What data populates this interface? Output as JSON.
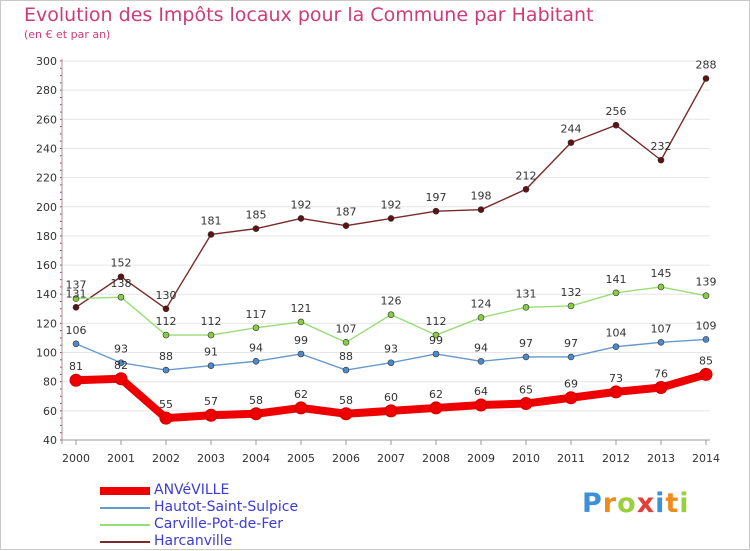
{
  "colors": {
    "title": "#cf3b78",
    "axis_text": "#333333",
    "grid": "#e6e6e6",
    "legend_text": "#3b3bd8",
    "tick": "#cc3366"
  },
  "chart_data": {
    "type": "line",
    "title": "Evolution des Impôts locaux pour la Commune par Habitant",
    "subtitle": "(en € et par an)",
    "xlabel": "",
    "ylabel": "",
    "ylim": [
      40,
      300
    ],
    "ytick_step": 20,
    "grid": true,
    "x": [
      "2000",
      "2001",
      "2002",
      "2003",
      "2004",
      "2005",
      "2006",
      "2007",
      "2008",
      "2009",
      "2010",
      "2011",
      "2012",
      "2013",
      "2014"
    ],
    "series": [
      {
        "name": "ANVéVILLE",
        "color": "#ee0000",
        "marker_color": "#ee0000",
        "emphasis": true,
        "values": [
          81,
          82,
          55,
          57,
          58,
          62,
          58,
          60,
          62,
          64,
          65,
          69,
          73,
          76,
          85
        ]
      },
      {
        "name": "Hautot-Saint-Sulpice",
        "color": "#6699cc",
        "marker_color": "#4d8ac9",
        "emphasis": false,
        "values": [
          106,
          93,
          88,
          91,
          94,
          99,
          88,
          93,
          99,
          94,
          97,
          97,
          104,
          107,
          109
        ]
      },
      {
        "name": "Carville-Pot-de-Fer",
        "color": "#99dd77",
        "marker_color": "#88cc44",
        "emphasis": false,
        "values": [
          137,
          138,
          112,
          112,
          117,
          121,
          107,
          126,
          112,
          124,
          131,
          132,
          141,
          145,
          139
        ]
      },
      {
        "name": "Harcanville",
        "color": "#7a2a2a",
        "marker_color": "#5e1212",
        "emphasis": false,
        "values": [
          131,
          152,
          130,
          181,
          185,
          192,
          187,
          192,
          197,
          198,
          212,
          244,
          256,
          232,
          288
        ]
      }
    ]
  },
  "logo": {
    "text": "Proxiti",
    "letters": [
      {
        "ch": "P",
        "color": "#3c8fd8"
      },
      {
        "ch": "r",
        "color": "#ef8a1d"
      },
      {
        "ch": "o",
        "color": "#9ccf3c"
      },
      {
        "ch": "x",
        "color": "#e53f3a"
      },
      {
        "ch": "i",
        "color": "#3c8fd8"
      },
      {
        "ch": "t",
        "color": "#ef8a1d"
      },
      {
        "ch": "i",
        "color": "#9ccf3c"
      }
    ]
  }
}
